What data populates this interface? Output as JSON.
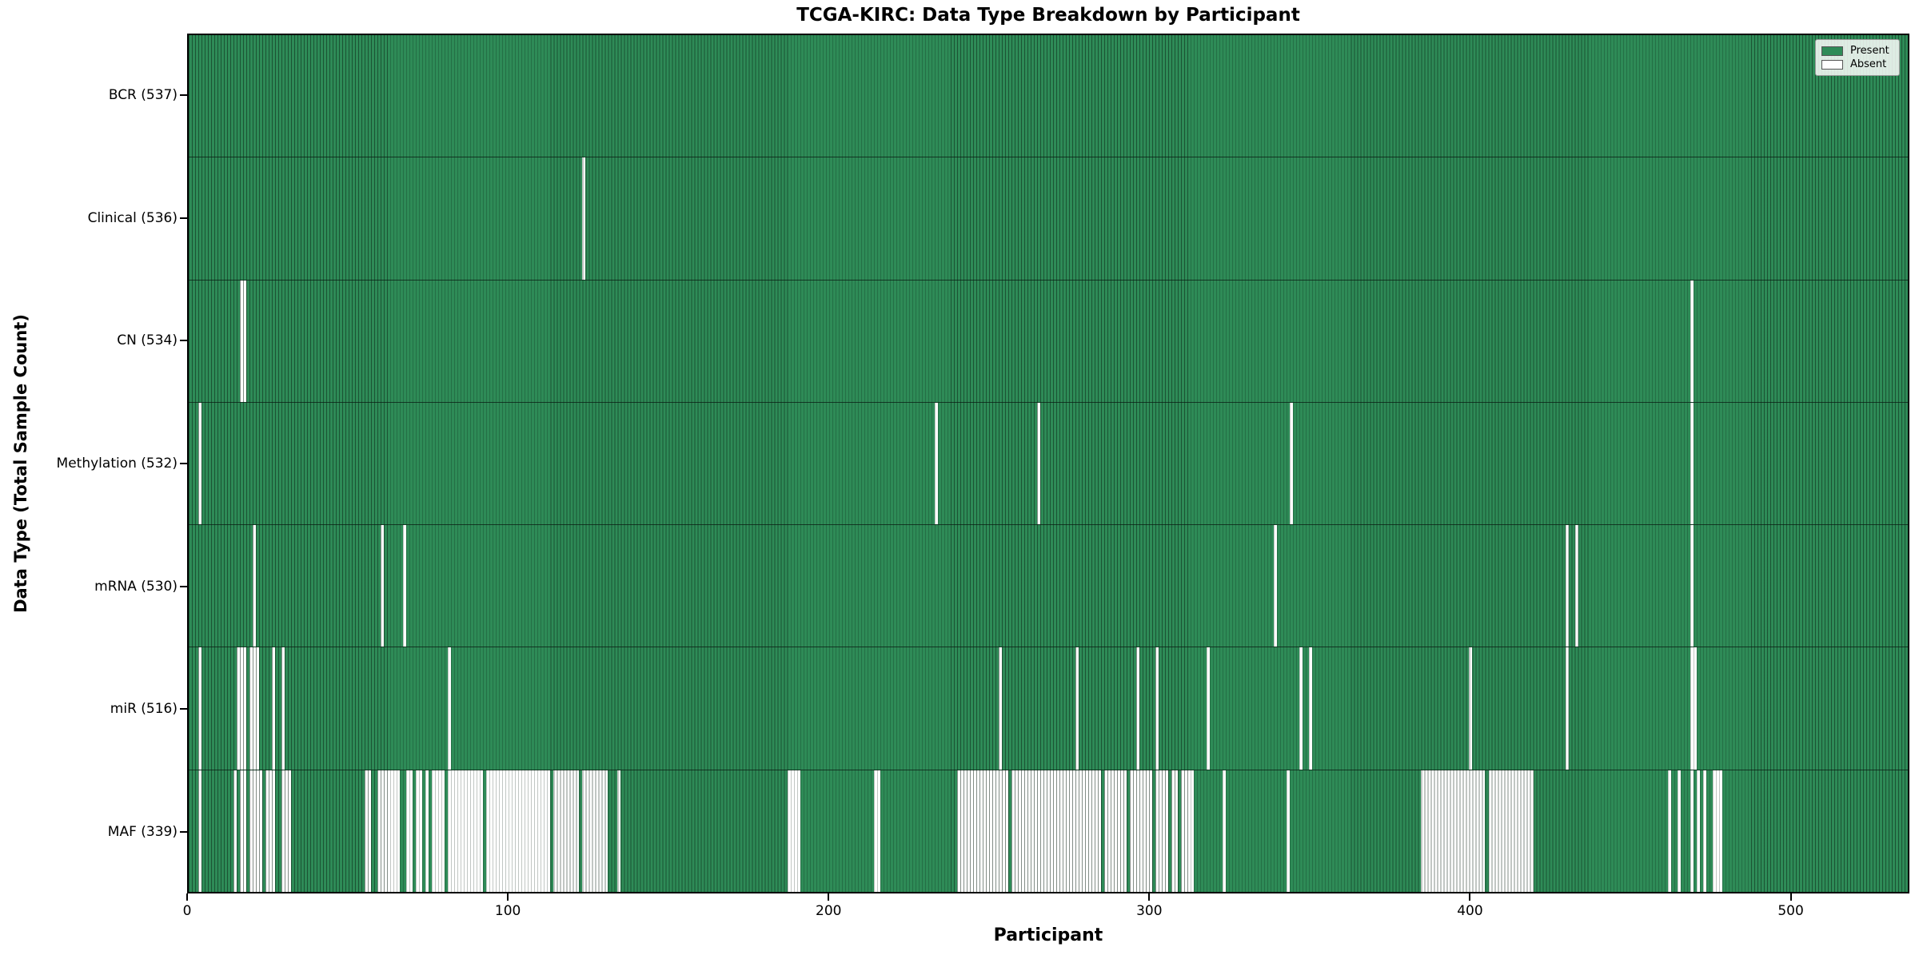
{
  "title": "TCGA-KIRC: Data Type Breakdown by Participant",
  "x_axis": {
    "label": "Participant",
    "ticks": [
      0,
      100,
      200,
      300,
      400,
      500
    ]
  },
  "y_axis": {
    "label": "Data Type (Total Sample Count)"
  },
  "legend": {
    "position": "upper right",
    "items": [
      {
        "label": "Present",
        "color": "#2e8b57"
      },
      {
        "label": "Absent",
        "color": "#ffffff"
      }
    ]
  },
  "chart_data": {
    "type": "heatmap",
    "title": "TCGA-KIRC: Data Type Breakdown by Participant",
    "xlabel": "Participant",
    "ylabel": "Data Type (Total Sample Count)",
    "x_ticks": [
      0,
      100,
      200,
      300,
      400,
      500
    ],
    "xlim": [
      0,
      537
    ],
    "n_participants": 537,
    "grid": false,
    "legend_position": "upper right",
    "colors": {
      "present": "#2e8b57",
      "absent": "#ffffff"
    },
    "rows": [
      {
        "category": "BCR",
        "label": "BCR (537)",
        "present_total": 537,
        "absent_ranges": []
      },
      {
        "category": "Clinical",
        "label": "Clinical (536)",
        "present_total": 536,
        "absent_ranges": [
          [
            123,
            123
          ]
        ]
      },
      {
        "category": "CN",
        "label": "CN (534)",
        "present_total": 534,
        "absent_ranges": [
          [
            16,
            17
          ],
          [
            469,
            469
          ]
        ]
      },
      {
        "category": "Methylation",
        "label": "Methylation (532)",
        "present_total": 532,
        "absent_ranges": [
          [
            3,
            3
          ],
          [
            233,
            233
          ],
          [
            265,
            265
          ],
          [
            344,
            344
          ],
          [
            469,
            469
          ]
        ]
      },
      {
        "category": "mRNA",
        "label": "mRNA (530)",
        "present_total": 530,
        "absent_ranges": [
          [
            20,
            20
          ],
          [
            60,
            60
          ],
          [
            67,
            67
          ],
          [
            339,
            339
          ],
          [
            430,
            430
          ],
          [
            433,
            433
          ],
          [
            469,
            469
          ]
        ]
      },
      {
        "category": "miR",
        "label": "miR (516)",
        "present_total": 516,
        "absent_ranges": [
          [
            3,
            3
          ],
          [
            15,
            17
          ],
          [
            19,
            21
          ],
          [
            26,
            26
          ],
          [
            29,
            29
          ],
          [
            81,
            81
          ],
          [
            253,
            253
          ],
          [
            277,
            277
          ],
          [
            296,
            296
          ],
          [
            302,
            302
          ],
          [
            318,
            318
          ],
          [
            347,
            347
          ],
          [
            350,
            350
          ],
          [
            400,
            400
          ],
          [
            430,
            430
          ],
          [
            469,
            470
          ]
        ]
      },
      {
        "category": "MAF",
        "label": "MAF (339)",
        "present_total": 339,
        "absent_ranges": [
          [
            3,
            3
          ],
          [
            14,
            14
          ],
          [
            16,
            17
          ],
          [
            19,
            22
          ],
          [
            24,
            26
          ],
          [
            29,
            31
          ],
          [
            55,
            56
          ],
          [
            59,
            65
          ],
          [
            68,
            69
          ],
          [
            71,
            72
          ],
          [
            74,
            74
          ],
          [
            76,
            79
          ],
          [
            81,
            91
          ],
          [
            93,
            112
          ],
          [
            114,
            121
          ],
          [
            123,
            130
          ],
          [
            134,
            134
          ],
          [
            187,
            190
          ],
          [
            214,
            215
          ],
          [
            240,
            255
          ],
          [
            257,
            284
          ],
          [
            286,
            292
          ],
          [
            294,
            300
          ],
          [
            302,
            305
          ],
          [
            307,
            308
          ],
          [
            310,
            313
          ],
          [
            323,
            323
          ],
          [
            343,
            343
          ],
          [
            385,
            404
          ],
          [
            406,
            419
          ],
          [
            462,
            462
          ],
          [
            465,
            465
          ],
          [
            469,
            469
          ],
          [
            471,
            471
          ],
          [
            473,
            473
          ],
          [
            476,
            478
          ]
        ]
      }
    ]
  }
}
